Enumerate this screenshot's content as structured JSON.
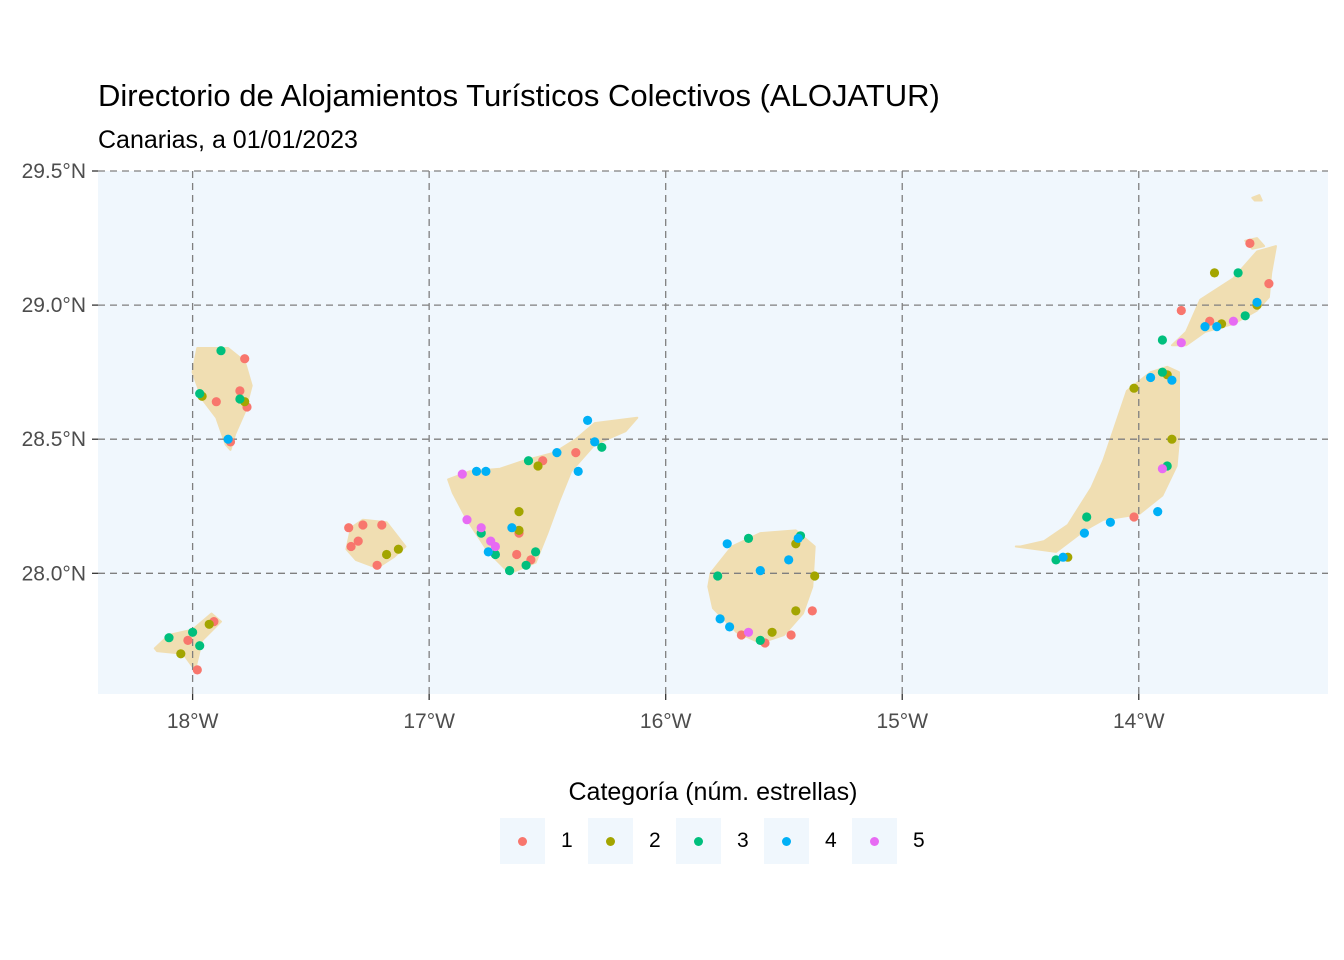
{
  "title": "Directorio de Alojamientos Turísticos Colectivos (ALOJATUR)",
  "subtitle": "Canarias, a 01/01/2023",
  "legend": {
    "title": "Categoría (núm. estrellas)",
    "items": [
      {
        "label": "1",
        "color": "#F8766D"
      },
      {
        "label": "2",
        "color": "#A3A500"
      },
      {
        "label": "3",
        "color": "#00BF7D"
      },
      {
        "label": "4",
        "color": "#00B0F6"
      },
      {
        "label": "5",
        "color": "#E76BF3"
      }
    ]
  },
  "colors": {
    "panel": "#f0f7fd",
    "land": "#f0deb2",
    "grid": "#7f7f7f"
  },
  "chart_data": {
    "type": "scatter",
    "x_ticks": [
      "18°W",
      "17°W",
      "16°W",
      "15°W",
      "14°W"
    ],
    "y_ticks": [
      "28.0°N",
      "28.5°N",
      "29.0°N",
      "29.5°N"
    ],
    "x_tick_values": [
      -18,
      -17,
      -16,
      -15,
      -14
    ],
    "y_tick_values": [
      28.0,
      28.5,
      29.0,
      29.5
    ],
    "xlim": [
      -18.4,
      -13.2
    ],
    "ylim": [
      27.55,
      29.5
    ],
    "grid": true,
    "legend_position": "bottom",
    "islands": [
      {
        "name": "La Palma",
        "outline": [
          [
            -17.98,
            28.84
          ],
          [
            -17.85,
            28.84
          ],
          [
            -17.78,
            28.79
          ],
          [
            -17.75,
            28.7
          ],
          [
            -17.78,
            28.6
          ],
          [
            -17.82,
            28.52
          ],
          [
            -17.84,
            28.46
          ],
          [
            -17.86,
            28.48
          ],
          [
            -17.9,
            28.58
          ],
          [
            -17.96,
            28.65
          ],
          [
            -18.0,
            28.75
          ]
        ]
      },
      {
        "name": "El Hierro",
        "outline": [
          [
            -18.16,
            27.72
          ],
          [
            -18.1,
            27.77
          ],
          [
            -18.0,
            27.79
          ],
          [
            -17.92,
            27.85
          ],
          [
            -17.88,
            27.82
          ],
          [
            -17.96,
            27.75
          ],
          [
            -17.99,
            27.64
          ],
          [
            -18.04,
            27.7
          ],
          [
            -18.15,
            27.71
          ]
        ]
      },
      {
        "name": "La Gomera",
        "outline": [
          [
            -17.35,
            28.09
          ],
          [
            -17.33,
            28.17
          ],
          [
            -17.28,
            28.2
          ],
          [
            -17.18,
            28.19
          ],
          [
            -17.1,
            28.1
          ],
          [
            -17.15,
            28.06
          ],
          [
            -17.22,
            28.02
          ],
          [
            -17.31,
            28.05
          ]
        ]
      },
      {
        "name": "Tenerife",
        "outline": [
          [
            -16.92,
            28.35
          ],
          [
            -16.83,
            28.38
          ],
          [
            -16.7,
            28.39
          ],
          [
            -16.6,
            28.42
          ],
          [
            -16.47,
            28.45
          ],
          [
            -16.38,
            28.5
          ],
          [
            -16.3,
            28.56
          ],
          [
            -16.12,
            28.58
          ],
          [
            -16.17,
            28.53
          ],
          [
            -16.3,
            28.48
          ],
          [
            -16.4,
            28.38
          ],
          [
            -16.45,
            28.27
          ],
          [
            -16.5,
            28.15
          ],
          [
            -16.55,
            28.04
          ],
          [
            -16.66,
            28.0
          ],
          [
            -16.75,
            28.08
          ],
          [
            -16.84,
            28.2
          ],
          [
            -16.9,
            28.3
          ]
        ]
      },
      {
        "name": "Gran Canaria",
        "outline": [
          [
            -15.81,
            28.0
          ],
          [
            -15.72,
            28.1
          ],
          [
            -15.6,
            28.15
          ],
          [
            -15.45,
            28.16
          ],
          [
            -15.37,
            28.1
          ],
          [
            -15.38,
            27.95
          ],
          [
            -15.42,
            27.85
          ],
          [
            -15.5,
            27.77
          ],
          [
            -15.6,
            27.74
          ],
          [
            -15.7,
            27.78
          ],
          [
            -15.8,
            27.87
          ],
          [
            -15.82,
            27.95
          ]
        ]
      },
      {
        "name": "Fuerteventura",
        "outline": [
          [
            -14.52,
            28.1
          ],
          [
            -14.35,
            28.08
          ],
          [
            -14.23,
            28.16
          ],
          [
            -14.15,
            28.2
          ],
          [
            -14.0,
            28.22
          ],
          [
            -13.9,
            28.29
          ],
          [
            -13.84,
            28.4
          ],
          [
            -13.83,
            28.5
          ],
          [
            -13.83,
            28.75
          ],
          [
            -13.88,
            28.77
          ],
          [
            -13.95,
            28.75
          ],
          [
            -14.05,
            28.68
          ],
          [
            -14.1,
            28.55
          ],
          [
            -14.15,
            28.42
          ],
          [
            -14.2,
            28.32
          ],
          [
            -14.3,
            28.18
          ],
          [
            -14.4,
            28.12
          ],
          [
            -14.5,
            28.1
          ]
        ]
      },
      {
        "name": "Lanzarote",
        "outline": [
          [
            -13.86,
            28.85
          ],
          [
            -13.8,
            28.9
          ],
          [
            -13.74,
            29.02
          ],
          [
            -13.6,
            29.1
          ],
          [
            -13.5,
            29.2
          ],
          [
            -13.42,
            29.22
          ],
          [
            -13.44,
            29.12
          ],
          [
            -13.45,
            29.03
          ],
          [
            -13.5,
            28.98
          ],
          [
            -13.6,
            28.93
          ],
          [
            -13.72,
            28.9
          ],
          [
            -13.8,
            28.85
          ]
        ]
      },
      {
        "name": "La Graciosa",
        "outline": [
          [
            -13.55,
            29.24
          ],
          [
            -13.5,
            29.25
          ],
          [
            -13.47,
            29.22
          ],
          [
            -13.52,
            29.21
          ]
        ]
      },
      {
        "name": "Alegranza",
        "outline": [
          [
            -13.52,
            29.4
          ],
          [
            -13.49,
            29.41
          ],
          [
            -13.48,
            29.39
          ],
          [
            -13.51,
            29.39
          ]
        ]
      }
    ],
    "series": [
      {
        "name": "1",
        "points": [
          [
            -17.78,
            28.8
          ],
          [
            -17.8,
            28.68
          ],
          [
            -17.9,
            28.64
          ],
          [
            -17.84,
            28.49
          ],
          [
            -17.77,
            28.62
          ],
          [
            -17.98,
            27.64
          ],
          [
            -18.02,
            27.75
          ],
          [
            -17.91,
            27.82
          ],
          [
            -17.33,
            28.1
          ],
          [
            -17.34,
            28.17
          ],
          [
            -17.28,
            28.18
          ],
          [
            -17.2,
            28.18
          ],
          [
            -17.22,
            28.03
          ],
          [
            -17.3,
            28.12
          ],
          [
            -16.63,
            28.07
          ],
          [
            -16.62,
            28.15
          ],
          [
            -16.57,
            28.05
          ],
          [
            -16.52,
            28.42
          ],
          [
            -16.38,
            28.45
          ],
          [
            -15.38,
            27.86
          ],
          [
            -15.68,
            27.77
          ],
          [
            -15.58,
            27.74
          ],
          [
            -14.02,
            28.21
          ],
          [
            -13.82,
            28.98
          ],
          [
            -13.7,
            28.94
          ],
          [
            -13.53,
            29.23
          ],
          [
            -13.45,
            29.08
          ],
          [
            -15.47,
            27.77
          ]
        ]
      },
      {
        "name": "2",
        "points": [
          [
            -17.96,
            28.66
          ],
          [
            -17.78,
            28.64
          ],
          [
            -18.05,
            27.7
          ],
          [
            -17.93,
            27.81
          ],
          [
            -17.18,
            28.07
          ],
          [
            -17.13,
            28.09
          ],
          [
            -16.62,
            28.23
          ],
          [
            -16.62,
            28.16
          ],
          [
            -16.54,
            28.4
          ],
          [
            -15.45,
            28.11
          ],
          [
            -15.37,
            27.99
          ],
          [
            -15.45,
            27.86
          ],
          [
            -15.55,
            27.78
          ],
          [
            -14.02,
            28.69
          ],
          [
            -13.88,
            28.74
          ],
          [
            -13.86,
            28.5
          ],
          [
            -14.3,
            28.06
          ],
          [
            -13.68,
            29.12
          ],
          [
            -13.65,
            28.93
          ],
          [
            -13.5,
            29.0
          ]
        ]
      },
      {
        "name": "3",
        "points": [
          [
            -17.88,
            28.83
          ],
          [
            -17.97,
            28.67
          ],
          [
            -17.8,
            28.65
          ],
          [
            -18.1,
            27.76
          ],
          [
            -18.0,
            27.78
          ],
          [
            -17.97,
            27.73
          ],
          [
            -16.78,
            28.15
          ],
          [
            -16.72,
            28.07
          ],
          [
            -16.66,
            28.01
          ],
          [
            -16.59,
            28.03
          ],
          [
            -16.55,
            28.08
          ],
          [
            -16.58,
            28.42
          ],
          [
            -16.27,
            28.47
          ],
          [
            -15.78,
            27.99
          ],
          [
            -15.65,
            28.13
          ],
          [
            -15.43,
            28.14
          ],
          [
            -15.6,
            27.75
          ],
          [
            -13.9,
            28.75
          ],
          [
            -13.88,
            28.4
          ],
          [
            -14.22,
            28.21
          ],
          [
            -14.35,
            28.05
          ],
          [
            -13.58,
            29.12
          ],
          [
            -13.9,
            28.87
          ],
          [
            -13.55,
            28.96
          ]
        ]
      },
      {
        "name": "4",
        "points": [
          [
            -17.85,
            28.5
          ],
          [
            -16.8,
            28.38
          ],
          [
            -16.76,
            28.38
          ],
          [
            -16.65,
            28.17
          ],
          [
            -16.46,
            28.45
          ],
          [
            -16.37,
            28.38
          ],
          [
            -16.33,
            28.57
          ],
          [
            -16.3,
            28.49
          ],
          [
            -16.75,
            28.08
          ],
          [
            -15.74,
            28.11
          ],
          [
            -15.6,
            28.01
          ],
          [
            -15.48,
            28.05
          ],
          [
            -15.44,
            28.13
          ],
          [
            -15.77,
            27.83
          ],
          [
            -15.73,
            27.8
          ],
          [
            -13.95,
            28.73
          ],
          [
            -13.86,
            28.72
          ],
          [
            -13.92,
            28.23
          ],
          [
            -14.12,
            28.19
          ],
          [
            -14.23,
            28.15
          ],
          [
            -14.32,
            28.06
          ],
          [
            -13.72,
            28.92
          ],
          [
            -13.67,
            28.92
          ],
          [
            -13.5,
            29.01
          ]
        ]
      },
      {
        "name": "5",
        "points": [
          [
            -16.86,
            28.37
          ],
          [
            -16.84,
            28.2
          ],
          [
            -16.78,
            28.17
          ],
          [
            -16.74,
            28.12
          ],
          [
            -16.72,
            28.1
          ],
          [
            -15.65,
            27.78
          ],
          [
            -13.9,
            28.39
          ],
          [
            -13.82,
            28.86
          ],
          [
            -13.6,
            28.94
          ]
        ]
      }
    ]
  }
}
